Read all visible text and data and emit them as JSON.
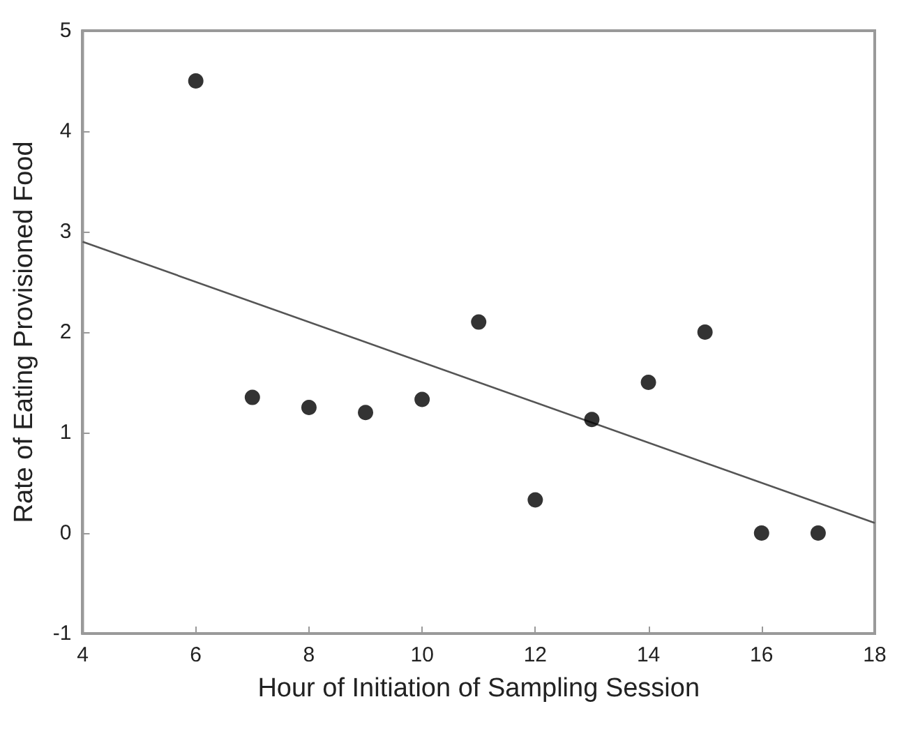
{
  "chart_data": {
    "type": "scatter",
    "xlabel": "Hour of Initiation of Sampling Session",
    "ylabel": "Rate of Eating Provisioned Food",
    "x": [
      6,
      7,
      8,
      9,
      10,
      11,
      12,
      13,
      14,
      15,
      16,
      17
    ],
    "series": [
      {
        "color": "#000000",
        "values": [
          4.5,
          1.35,
          1.25,
          1.2,
          1.33,
          2.1,
          0.33,
          1.13,
          1.5,
          2.0,
          0.0,
          0.0
        ]
      },
      {
        "type": "line",
        "color": "#555555",
        "marker": "none",
        "x": [
          4,
          18
        ],
        "values": [
          2.9,
          0.1
        ]
      }
    ],
    "xlim": [
      4,
      18
    ],
    "xticks": [
      4,
      6,
      8,
      10,
      12,
      14,
      16,
      18
    ],
    "ylim": [
      -1,
      5
    ],
    "yticks": [
      -1,
      0,
      1,
      2,
      3,
      4,
      5
    ],
    "grid": false,
    "marker": "circle"
  }
}
